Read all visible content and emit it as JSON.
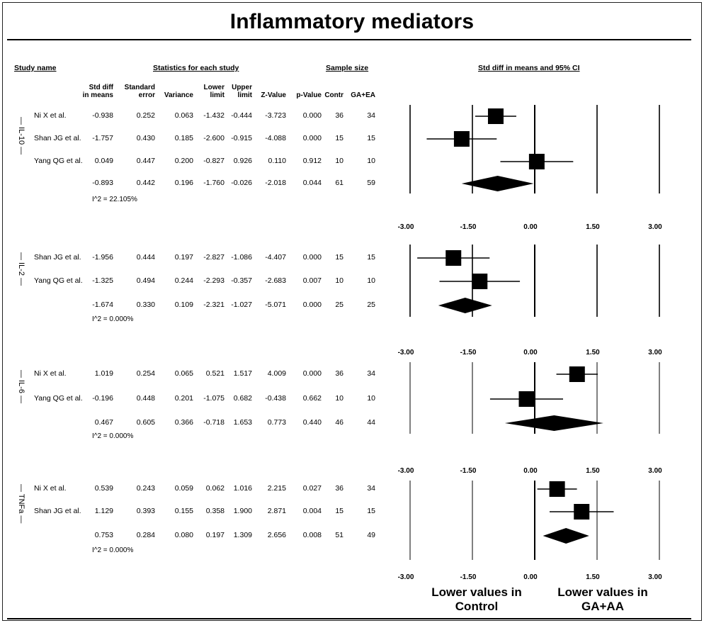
{
  "title": "Inflammatory mediators",
  "headers": {
    "study_name": "Study name",
    "stats": "Statistics for each study",
    "sample": "Sample size",
    "plot": "Std diff in means and 95%  CI",
    "columns": [
      [
        "Std diff",
        "in means"
      ],
      [
        "Standard",
        "error"
      ],
      [
        "",
        "Variance"
      ],
      [
        "Lower",
        "limit"
      ],
      [
        "Upper",
        "limit"
      ],
      [
        "",
        "Z-Value"
      ],
      [
        "",
        "p-Value"
      ],
      [
        "",
        "Contr"
      ],
      [
        "",
        "GA+EA"
      ]
    ]
  },
  "chart_data": {
    "type": "forest",
    "xlim": [
      -3,
      3
    ],
    "ticks": [
      "-3.00",
      "-1.50",
      "0.00",
      "1.50",
      "3.00"
    ],
    "xlabel_left": "Lower values in Control",
    "xlabel_right": "Lower values in GA+AA",
    "groups": [
      {
        "label": "IL-10",
        "studies": [
          {
            "name": "Ni X et al.",
            "vals": [
              "-0.938",
              "0.252",
              "0.063",
              "-1.432",
              "-0.444",
              "-3.723",
              "0.000",
              "36",
              "34"
            ],
            "est": -0.938,
            "lo": -1.432,
            "hi": -0.444
          },
          {
            "name": "Shan JG et al.",
            "vals": [
              "-1.757",
              "0.430",
              "0.185",
              "-2.600",
              "-0.915",
              "-4.088",
              "0.000",
              "15",
              "15"
            ],
            "est": -1.757,
            "lo": -2.6,
            "hi": -0.915
          },
          {
            "name": "Yang QG et al.",
            "vals": [
              "0.049",
              "0.447",
              "0.200",
              "-0.827",
              "0.926",
              "0.110",
              "0.912",
              "10",
              "10"
            ],
            "est": 0.049,
            "lo": -0.827,
            "hi": 0.926
          }
        ],
        "summary": {
          "vals": [
            "-0.893",
            "0.442",
            "0.196",
            "-1.760",
            "-0.026",
            "-2.018",
            "0.044",
            "61",
            "59"
          ],
          "est": -0.893,
          "lo": -1.76,
          "hi": -0.026
        },
        "i2": "I^2 = 22.105%"
      },
      {
        "label": "IL-2",
        "studies": [
          {
            "name": "Shan JG et al.",
            "vals": [
              "-1.956",
              "0.444",
              "0.197",
              "-2.827",
              "-1.086",
              "-4.407",
              "0.000",
              "15",
              "15"
            ],
            "est": -1.956,
            "lo": -2.827,
            "hi": -1.086
          },
          {
            "name": "Yang QG et al.",
            "vals": [
              "-1.325",
              "0.494",
              "0.244",
              "-2.293",
              "-0.357",
              "-2.683",
              "0.007",
              "10",
              "10"
            ],
            "est": -1.325,
            "lo": -2.293,
            "hi": -0.357
          }
        ],
        "summary": {
          "vals": [
            "-1.674",
            "0.330",
            "0.109",
            "-2.321",
            "-1.027",
            "-5.071",
            "0.000",
            "25",
            "25"
          ],
          "est": -1.674,
          "lo": -2.321,
          "hi": -1.027
        },
        "i2": "I^2 = 0.000%"
      },
      {
        "label": "IL-6",
        "studies": [
          {
            "name": "Ni X et al.",
            "vals": [
              "1.019",
              "0.254",
              "0.065",
              "0.521",
              "1.517",
              "4.009",
              "0.000",
              "36",
              "34"
            ],
            "est": 1.019,
            "lo": 0.521,
            "hi": 1.517
          },
          {
            "name": "Yang QG et al.",
            "vals": [
              "-0.196",
              "0.448",
              "0.201",
              "-1.075",
              "0.682",
              "-0.438",
              "0.662",
              "10",
              "10"
            ],
            "est": -0.196,
            "lo": -1.075,
            "hi": 0.682
          }
        ],
        "summary": {
          "vals": [
            "0.467",
            "0.605",
            "0.366",
            "-0.718",
            "1.653",
            "0.773",
            "0.440",
            "46",
            "44"
          ],
          "est": 0.467,
          "lo": -0.718,
          "hi": 1.653
        },
        "i2": "I^2 = 0.000%"
      },
      {
        "label": "TNFa",
        "studies": [
          {
            "name": "Ni X et al.",
            "vals": [
              "0.539",
              "0.243",
              "0.059",
              "0.062",
              "1.016",
              "2.215",
              "0.027",
              "36",
              "34"
            ],
            "est": 0.539,
            "lo": 0.062,
            "hi": 1.016
          },
          {
            "name": "Shan JG et al.",
            "vals": [
              "1.129",
              "0.393",
              "0.155",
              "0.358",
              "1.900",
              "2.871",
              "0.004",
              "15",
              "15"
            ],
            "est": 1.129,
            "lo": 0.358,
            "hi": 1.9
          }
        ],
        "summary": {
          "vals": [
            "0.753",
            "0.284",
            "0.080",
            "0.197",
            "1.309",
            "2.656",
            "0.008",
            "51",
            "49"
          ],
          "est": 0.753,
          "lo": 0.197,
          "hi": 1.309
        },
        "i2": "I^2 = 0.000%"
      }
    ]
  }
}
